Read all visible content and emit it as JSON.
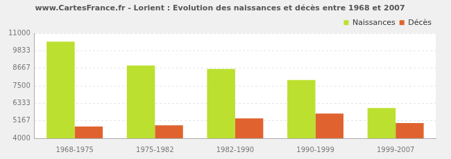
{
  "chart_data": {
    "type": "bar",
    "title": "www.CartesFrance.fr - Lorient : Evolution des naissances et décès entre 1968 et 2007",
    "categories": [
      "1968-1975",
      "1975-1982",
      "1982-1990",
      "1990-1999",
      "1999-2007"
    ],
    "series": [
      {
        "name": "Naissances",
        "color": "#bbe02f",
        "values": [
          10450,
          8850,
          8620,
          7880,
          6020
        ]
      },
      {
        "name": "Décès",
        "color": "#e0632f",
        "values": [
          4780,
          4860,
          5330,
          5650,
          5020
        ]
      }
    ],
    "ylim": [
      4000,
      11000
    ],
    "yticks": [
      4000,
      5167,
      6333,
      7500,
      8667,
      9833,
      11000
    ],
    "grid": true,
    "legend": "upper right"
  }
}
